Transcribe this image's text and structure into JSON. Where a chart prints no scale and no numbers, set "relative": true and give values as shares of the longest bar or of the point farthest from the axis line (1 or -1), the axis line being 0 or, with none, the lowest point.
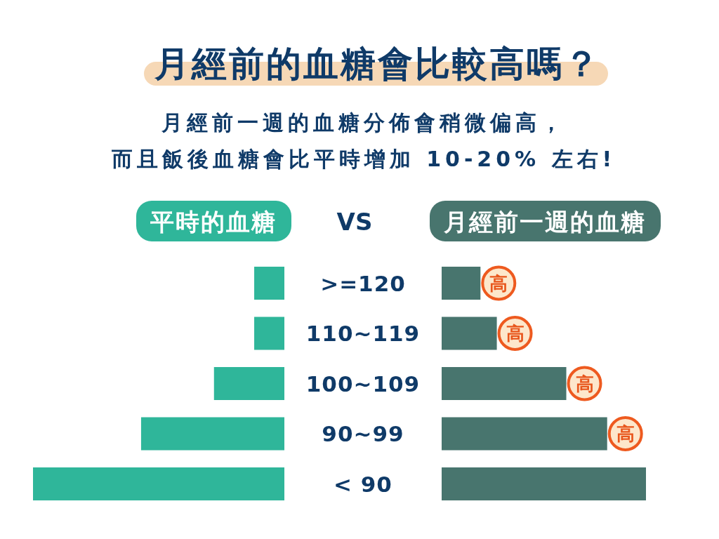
{
  "chart_data": [
    {
      "type": "bar",
      "orientation": "horizontal",
      "relative": true,
      "title": "月經前的血糖會比較高嗎？",
      "subtitle": "月經前一週的血糖分佈會稍微偏高，而且飯後血糖會比平時增加 10-20% 左右!",
      "categories": [
        ">=120",
        "110~119",
        "100~109",
        "90~99",
        "< 90"
      ],
      "series": [
        {
          "name": "平時的血糖",
          "color": "#2fb69a",
          "values": [
            -0.12,
            -0.12,
            -0.28,
            -0.57,
            -1
          ]
        }
      ],
      "legend": "top",
      "annotations": [
        "VS"
      ]
    },
    {
      "type": "bar",
      "orientation": "horizontal",
      "relative": true,
      "categories": [
        ">=120",
        "110~119",
        "100~109",
        "90~99",
        "< 90"
      ],
      "tick_labels": false,
      "series": [
        {
          "name": "月經前一週的血糖",
          "color": "#48756e",
          "values": [
            0.19,
            0.27,
            0.61,
            0.81,
            1
          ]
        }
      ],
      "legend": "top",
      "annotations": [
        {
          "text": "高",
          "x": 0.19,
          "y": ">=120"
        },
        {
          "text": "高",
          "x": 0.27,
          "y": "110~119"
        },
        {
          "text": "高",
          "x": 0.61,
          "y": "100~109"
        },
        {
          "text": "高",
          "x": 0.81,
          "y": "90~99"
        }
      ]
    }
  ]
}
